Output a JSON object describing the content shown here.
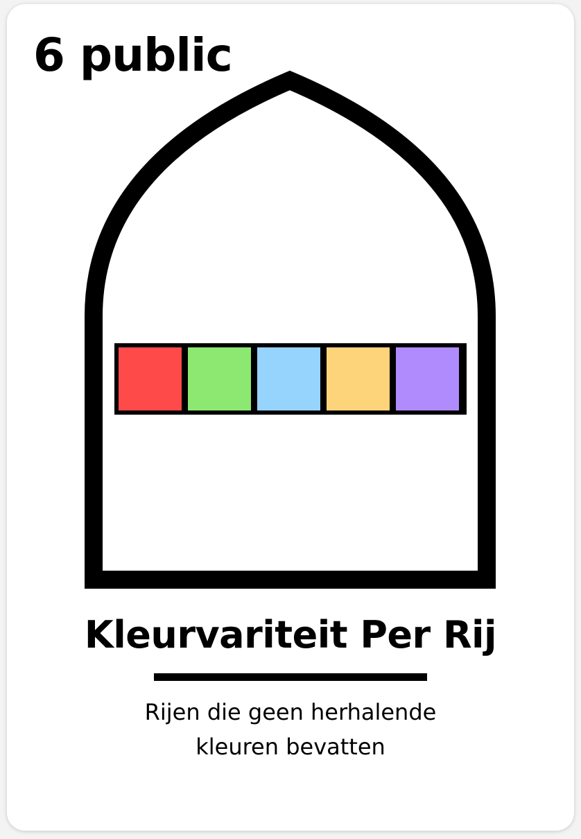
{
  "card": {
    "points_label": "6 public",
    "title": "Kleurvariteit Per Rij",
    "description_lines": [
      "Rijen die geen herhalende",
      "kleuren bevatten"
    ],
    "row_tiles": [
      {
        "name": "red",
        "color": "#ff4a4a"
      },
      {
        "name": "green",
        "color": "#8de872"
      },
      {
        "name": "blue",
        "color": "#96d3fd"
      },
      {
        "name": "yellow",
        "color": "#fed47a"
      },
      {
        "name": "purple",
        "color": "#b08bfd"
      }
    ],
    "colors": {
      "background": "#ffffff",
      "outline": "#000000"
    }
  }
}
